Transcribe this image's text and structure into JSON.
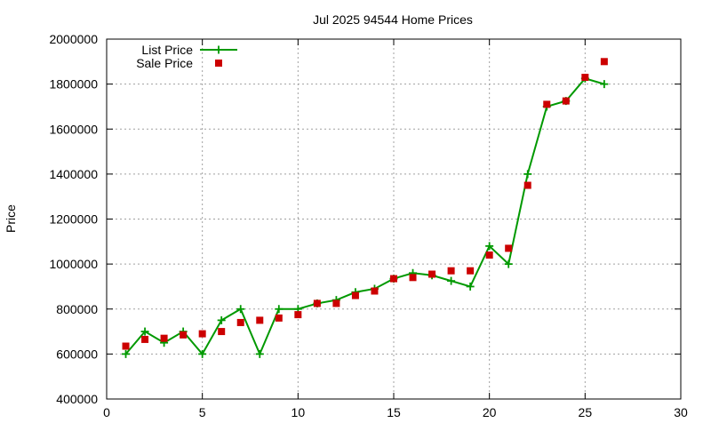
{
  "chart_data": {
    "type": "line",
    "title": "Jul 2025 94544 Home Prices",
    "xlabel": "",
    "ylabel": "Price",
    "xlim": [
      0,
      30
    ],
    "ylim": [
      400000,
      2000000
    ],
    "x_ticks": [
      0,
      5,
      10,
      15,
      20,
      25,
      30
    ],
    "y_ticks": [
      400000,
      600000,
      800000,
      1000000,
      1200000,
      1400000,
      1600000,
      1800000,
      2000000
    ],
    "grid": true,
    "legend_position": "top-left",
    "series": [
      {
        "name": "List Price",
        "style": "line with plus markers",
        "color": "#009900",
        "x": [
          1,
          2,
          3,
          4,
          5,
          6,
          7,
          8,
          9,
          10,
          11,
          12,
          13,
          14,
          15,
          16,
          17,
          18,
          19,
          20,
          21,
          22,
          23,
          24,
          25,
          26
        ],
        "y": [
          600000,
          700000,
          650000,
          700000,
          600000,
          750000,
          800000,
          600000,
          800000,
          800000,
          825000,
          840000,
          875000,
          890000,
          935000,
          960000,
          950000,
          925000,
          900000,
          1080000,
          1000000,
          1400000,
          1700000,
          1725000,
          1825000,
          1800000
        ]
      },
      {
        "name": "Sale Price",
        "style": "square markers",
        "color": "#cc0000",
        "x": [
          1,
          2,
          3,
          4,
          5,
          6,
          7,
          8,
          9,
          10,
          11,
          12,
          13,
          14,
          15,
          16,
          17,
          18,
          19,
          20,
          21,
          22,
          23,
          24,
          25,
          26
        ],
        "y": [
          635000,
          665000,
          670000,
          685000,
          690000,
          700000,
          740000,
          750000,
          760000,
          775000,
          825000,
          825000,
          860000,
          880000,
          935000,
          940000,
          955000,
          970000,
          970000,
          1040000,
          1070000,
          1350000,
          1710000,
          1725000,
          1830000,
          1900000
        ]
      }
    ]
  }
}
